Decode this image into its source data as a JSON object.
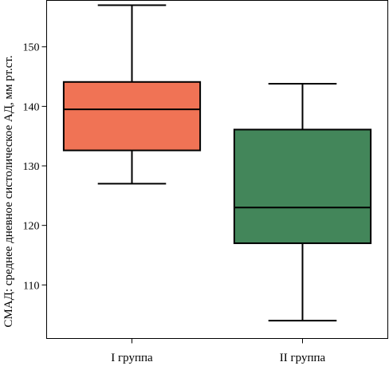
{
  "chart_data": {
    "type": "boxplot",
    "title": "",
    "xlabel": "",
    "ylabel": "СМАД: среднее дневное систолическое АД, мм рт.ст.",
    "ylim": [
      101,
      157.8
    ],
    "yticks": [
      110,
      120,
      130,
      140,
      150
    ],
    "grid": false,
    "legend": "none",
    "categories": [
      "I группа",
      "II группа"
    ],
    "boxes": [
      {
        "category": "I группа",
        "whisker_low": 127,
        "q1": 132.6,
        "median": 139.5,
        "q3": 144.1,
        "whisker_high": 157,
        "color": "#F07355"
      },
      {
        "category": "II группа",
        "whisker_low": 104,
        "q1": 117,
        "median": 123,
        "q3": 136.1,
        "whisker_high": 143.8,
        "color": "#43865A"
      }
    ]
  }
}
